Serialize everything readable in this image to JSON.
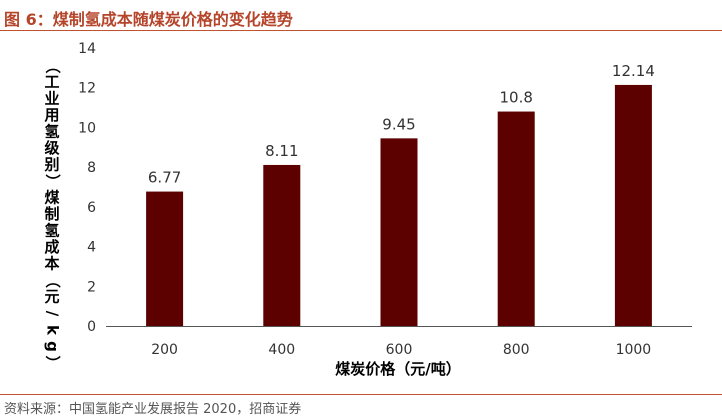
{
  "figure": {
    "title": "图 6：煤制氢成本随煤炭价格的变化趋势",
    "source": "资料来源：中国氢能产业发展报告 2020，招商证券"
  },
  "colors": {
    "bar": "#5c0000",
    "title": "#b5452a",
    "rule": "#c0522f",
    "axis": "#555555",
    "text": "#333333"
  },
  "chart_data": {
    "type": "bar",
    "title": "",
    "xlabel": "煤炭价格（元/吨）",
    "ylabel": "（工业用氢级别）煤制氢成本（元/kg）",
    "categories": [
      "200",
      "400",
      "600",
      "800",
      "1000"
    ],
    "values": [
      6.77,
      8.11,
      9.45,
      10.8,
      12.14
    ],
    "value_labels": [
      "6.77",
      "8.11",
      "9.45",
      "10.8",
      "12.14"
    ],
    "ylim": [
      0,
      14
    ],
    "yticks": [
      "0",
      "2",
      "4",
      "6",
      "8",
      "10",
      "12",
      "14"
    ],
    "grid": false,
    "legend": "none"
  }
}
